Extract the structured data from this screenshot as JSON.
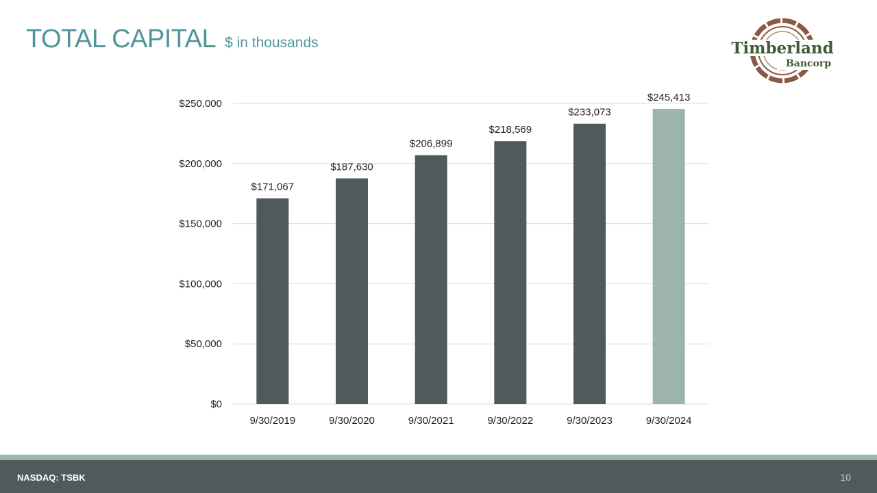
{
  "slide": {
    "title": "TOTAL CAPITAL",
    "subtitle": "$ in thousands",
    "logo_text": "Timberland",
    "logo_subtext": "Bancorp",
    "footer_ticker": "NASDAQ: TSBK",
    "page_number": "10"
  },
  "colors": {
    "title": "#4f959c",
    "bar": "#50595b",
    "bar_highlight": "#9db3ad",
    "grid": "#d9d9d9",
    "logo_ring": "#8a5a44",
    "logo_text": "#3d5a36"
  },
  "chart_data": {
    "type": "bar",
    "title": "",
    "xlabel": "",
    "ylabel": "",
    "categories": [
      "9/30/2019",
      "9/30/2020",
      "9/30/2021",
      "9/30/2022",
      "9/30/2023",
      "9/30/2024"
    ],
    "values": [
      171067,
      187630,
      206899,
      218569,
      233073,
      245413
    ],
    "data_labels": [
      "$171,067",
      "$187,630",
      "$206,899",
      "$218,569",
      "$233,073",
      "$245,413"
    ],
    "highlight_index": 5,
    "ylim": [
      0,
      250000
    ],
    "y_ticks": [
      0,
      50000,
      100000,
      150000,
      200000,
      250000
    ],
    "y_tick_labels": [
      "$0",
      "$50,000",
      "$100,000",
      "$150,000",
      "$200,000",
      "$250,000"
    ],
    "grid": true
  }
}
